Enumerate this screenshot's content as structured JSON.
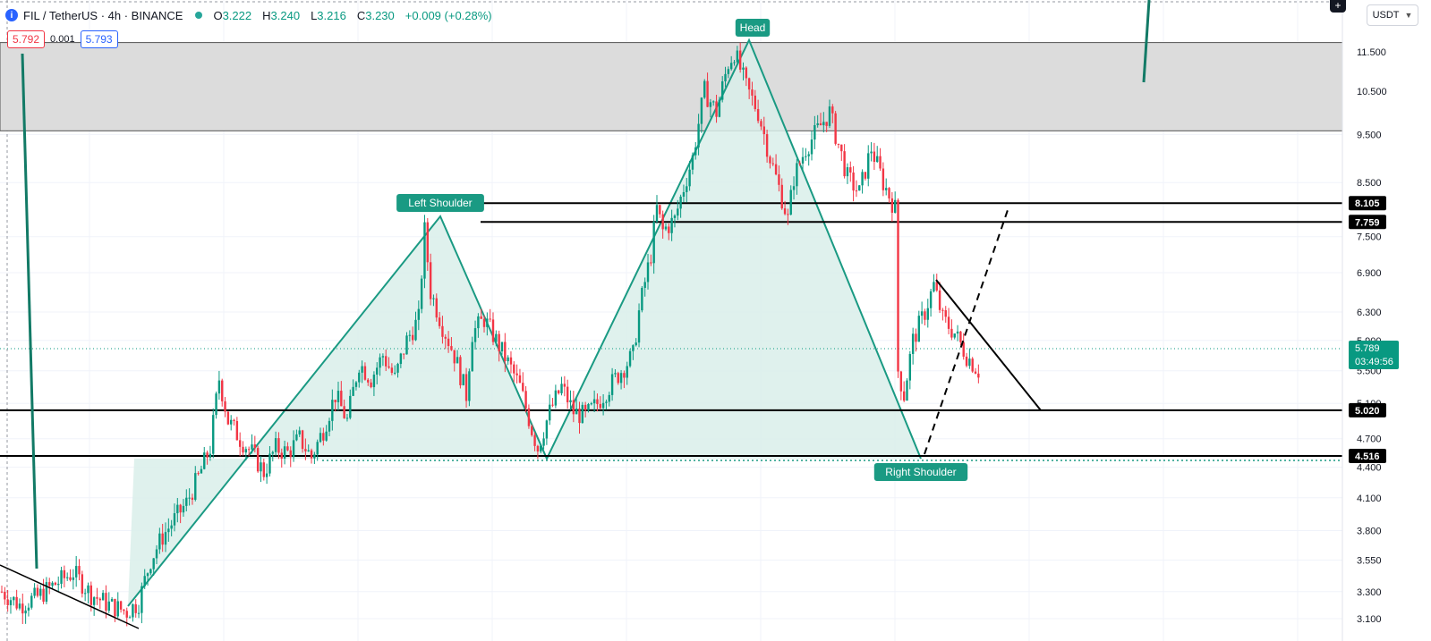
{
  "header": {
    "symbol_icon": "info-circle-icon",
    "title": "FIL / TetherUS · 4h · BINANCE",
    "ohlc": [
      {
        "key": "O",
        "value": "3.222"
      },
      {
        "key": "H",
        "value": "3.240"
      },
      {
        "key": "L",
        "value": "3.216"
      },
      {
        "key": "C",
        "value": "3.230"
      }
    ],
    "change": "+0.009 (+0.28%)",
    "sell_price": "5.792",
    "spread": "0.001",
    "buy_price": "5.793",
    "currency": "USDT"
  },
  "colors": {
    "up": "#089981",
    "down": "#f23645",
    "pattern": "#1a9a83",
    "pattern_fill": "#d9efea",
    "zone": "#dcdcdc",
    "level": "#000000"
  },
  "chart_data": {
    "type": "candlestick",
    "title": "FIL / TetherUS · 4h · BINANCE",
    "y_ticks": [
      3.1,
      3.3,
      3.55,
      3.8,
      4.1,
      4.4,
      4.7,
      5.1,
      5.5,
      5.9,
      6.3,
      6.9,
      7.5,
      8.5,
      9.5,
      10.5,
      11.5
    ],
    "y_tick_labels": [
      "3.100",
      "3.300",
      "3.550",
      "3.800",
      "4.100",
      "4.400",
      "4.700",
      "5.100",
      "5.500",
      "5.900",
      "6.300",
      "6.900",
      "7.500",
      "8.500",
      "9.500",
      "10.500",
      "11.500"
    ],
    "y_range": [
      3.05,
      12.2
    ],
    "scale": "log",
    "current_price": {
      "value": 5.789,
      "label": "5.789",
      "countdown": "03:49:56"
    },
    "horizontal_levels": [
      {
        "value": 8.105,
        "label": "8.105"
      },
      {
        "value": 7.759,
        "label": "7.759"
      },
      {
        "value": 5.02,
        "label": "5.020"
      },
      {
        "value": 4.516,
        "label": "4.516"
      }
    ],
    "resistance_zone": [
      9.58,
      11.75
    ],
    "annotations": [
      {
        "text": "Left Shoulder",
        "value": 7.9
      },
      {
        "text": "Head",
        "value": 11.8
      },
      {
        "text": "Right Shoulder",
        "value": 4.49
      }
    ],
    "price_path": [
      [
        0,
        3.3
      ],
      [
        6,
        3.2
      ],
      [
        12,
        3.26
      ],
      [
        18,
        3.36
      ],
      [
        24,
        3.45
      ],
      [
        30,
        3.28
      ],
      [
        36,
        3.2
      ],
      [
        42,
        3.15
      ],
      [
        46,
        3.22
      ],
      [
        50,
        3.55
      ],
      [
        54,
        3.75
      ],
      [
        58,
        3.9
      ],
      [
        62,
        4.05
      ],
      [
        66,
        4.3
      ],
      [
        70,
        4.6
      ],
      [
        73,
        5.4
      ],
      [
        76,
        4.9
      ],
      [
        80,
        4.7
      ],
      [
        84,
        4.55
      ],
      [
        88,
        4.35
      ],
      [
        92,
        4.6
      ],
      [
        96,
        4.55
      ],
      [
        100,
        4.7
      ],
      [
        104,
        4.5
      ],
      [
        108,
        4.8
      ],
      [
        112,
        5.2
      ],
      [
        116,
        4.9
      ],
      [
        120,
        5.6
      ],
      [
        124,
        5.4
      ],
      [
        128,
        5.7
      ],
      [
        132,
        5.4
      ],
      [
        136,
        5.9
      ],
      [
        140,
        6.2
      ],
      [
        142,
        7.6
      ],
      [
        144,
        6.6
      ],
      [
        148,
        6.1
      ],
      [
        152,
        5.7
      ],
      [
        156,
        5.2
      ],
      [
        158,
        6.0
      ],
      [
        162,
        6.2
      ],
      [
        166,
        5.9
      ],
      [
        170,
        5.6
      ],
      [
        174,
        5.3
      ],
      [
        178,
        4.8
      ],
      [
        180,
        4.6
      ],
      [
        184,
        5.0
      ],
      [
        188,
        5.3
      ],
      [
        192,
        5.0
      ],
      [
        196,
        4.95
      ],
      [
        200,
        5.1
      ],
      [
        204,
        5.3
      ],
      [
        208,
        5.5
      ],
      [
        212,
        5.7
      ],
      [
        214,
        6.3
      ],
      [
        218,
        7.2
      ],
      [
        220,
        8.0
      ],
      [
        222,
        7.6
      ],
      [
        226,
        7.8
      ],
      [
        228,
        8.2
      ],
      [
        232,
        9.0
      ],
      [
        236,
        10.5
      ],
      [
        240,
        10.0
      ],
      [
        244,
        11.2
      ],
      [
        246,
        11.5
      ],
      [
        250,
        10.6
      ],
      [
        254,
        10.0
      ],
      [
        258,
        9.0
      ],
      [
        262,
        8.2
      ],
      [
        264,
        7.8
      ],
      [
        266,
        8.6
      ],
      [
        270,
        9.2
      ],
      [
        274,
        9.6
      ],
      [
        278,
        10.0
      ],
      [
        280,
        9.5
      ],
      [
        284,
        8.6
      ],
      [
        288,
        8.3
      ],
      [
        292,
        9.2
      ],
      [
        296,
        8.5
      ],
      [
        300,
        8.0
      ],
      [
        301,
        5.5
      ],
      [
        303,
        5.2
      ],
      [
        306,
        5.9
      ],
      [
        310,
        6.3
      ],
      [
        313,
        6.7
      ],
      [
        316,
        6.2
      ],
      [
        320,
        6.0
      ],
      [
        324,
        5.7
      ],
      [
        328,
        5.5
      ]
    ],
    "x_count": 330
  }
}
